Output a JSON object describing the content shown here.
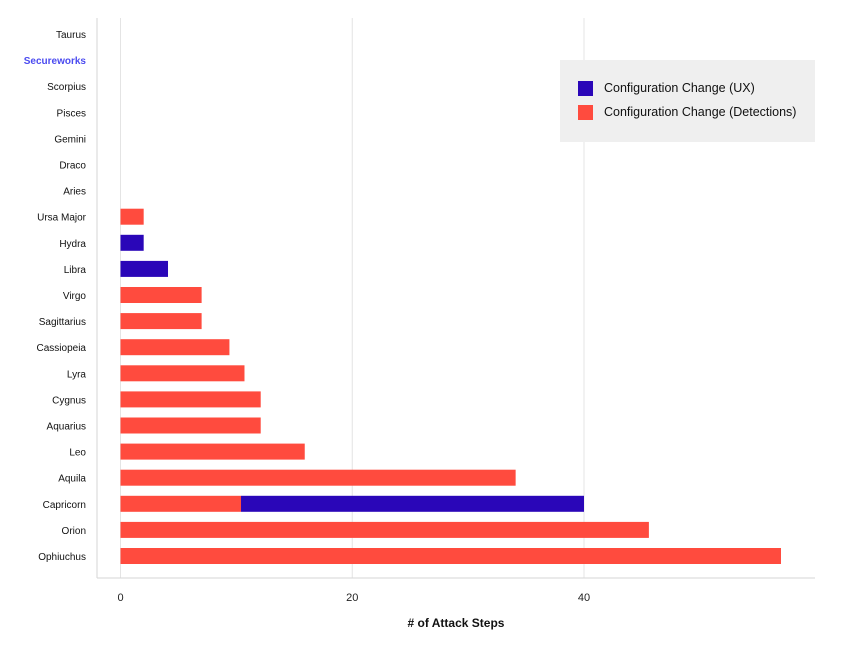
{
  "chart_data": {
    "type": "bar",
    "orientation": "horizontal",
    "stacked": true,
    "title": "",
    "xlabel": "# of Attack Steps",
    "ylabel": "",
    "xlim": [
      -2,
      60
    ],
    "xticks": [
      0,
      20,
      40
    ],
    "grid": "vertical",
    "legend_position": "top-right",
    "highlight_category": "Secureworks",
    "highlight_color": "#4b4bf0",
    "categories": [
      "Taurus",
      "Secureworks",
      "Scorpius",
      "Pisces",
      "Gemini",
      "Draco",
      "Aries",
      "Ursa Major",
      "Hydra",
      "Libra",
      "Virgo",
      "Sagittarius",
      "Cassiopeia",
      "Lyra",
      "Cygnus",
      "Aquarius",
      "Leo",
      "Aquila",
      "Capricorn",
      "Orion",
      "Ophiuchus"
    ],
    "series": [
      {
        "name": "Configuration Change (Detections)",
        "color": "#ff4b3e",
        "values": [
          0,
          0,
          0,
          0,
          0,
          0,
          0,
          2,
          0,
          0,
          7,
          7,
          9.4,
          10.7,
          12.1,
          12.1,
          15.9,
          34.1,
          10.4,
          45.6,
          57
        ]
      },
      {
        "name": "Configuration Change (UX)",
        "color": "#2a06b8",
        "values": [
          0,
          0,
          0,
          0,
          0,
          0,
          0,
          0,
          2,
          4.1,
          0,
          0,
          0,
          0,
          0,
          0,
          0,
          0,
          29.6,
          0,
          0
        ]
      }
    ],
    "legend": [
      "Configuration Change (UX)",
      "Configuration Change (Detections)"
    ]
  }
}
